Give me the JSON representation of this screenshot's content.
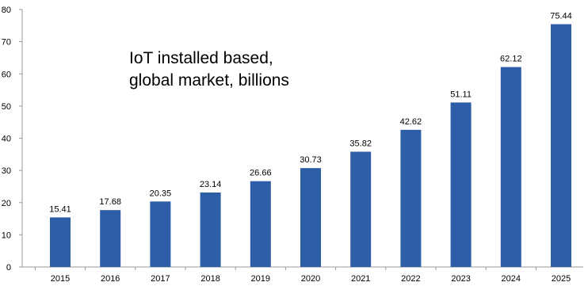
{
  "chart_data": {
    "type": "bar",
    "title_lines": [
      "IoT installed based,",
      "global market, billions"
    ],
    "categories": [
      "2015",
      "2016",
      "2017",
      "2018",
      "2019",
      "2020",
      "2021",
      "2022",
      "2023",
      "2024",
      "2025"
    ],
    "values": [
      15.41,
      17.68,
      20.35,
      23.14,
      26.66,
      30.73,
      35.82,
      42.62,
      51.11,
      62.12,
      75.44
    ],
    "data_labels": [
      "15.41",
      "17.68",
      "20.35",
      "23.14",
      "26.66",
      "30.73",
      "35.82",
      "42.62",
      "51.11",
      "62.12",
      "75.44"
    ],
    "y_ticks": [
      "0",
      "10",
      "20",
      "30",
      "40",
      "50",
      "60",
      "70",
      "80"
    ],
    "ylim": [
      0,
      80
    ],
    "xlabel": "",
    "ylabel": "",
    "grid": false,
    "legend": "none",
    "bar_color": "#2e5ea8",
    "axis_color": "#9a9a9a"
  }
}
